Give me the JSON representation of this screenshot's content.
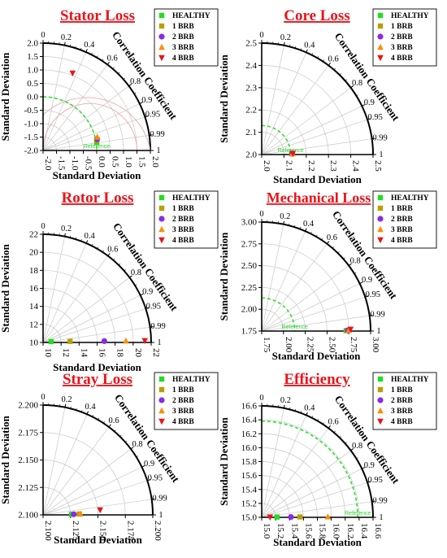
{
  "colors": {
    "title": "#e8141b",
    "healthy": "#22dd22",
    "brb1": "#b8a000",
    "brb2": "#8a2be2",
    "brb3": "#ff8c00",
    "brb4": "#e8141b",
    "reference_arc": "#22dd22",
    "rms_arc": "#e8a0a0",
    "grid": "#c8c8c8"
  },
  "legend_labels": [
    "HEALTHY",
    "1 BRB",
    "2 BRB",
    "3 BRB",
    "4 BRB"
  ],
  "chart_data": [
    {
      "type": "taylor",
      "title": "Stator Loss",
      "xlabel": "Standard Deviation",
      "ylabel": "Standard Deviation",
      "corr_label": "Correlation Coefficient",
      "range": [
        -2.0,
        2.0
      ],
      "x_ticks": [
        "-2.0",
        "-1.5",
        "-1.0",
        "-0.5",
        "0.0",
        "0.5",
        "1.0",
        "1.5",
        "2.0"
      ],
      "y_ticks": [
        "-2.0",
        "-1.5",
        "-1.0",
        "-0.5",
        "0.0",
        "0.5",
        "1.0",
        "1.5",
        "2.0"
      ],
      "corr_ticks": [
        "0",
        "0.2",
        "0.4",
        "0.6",
        "0.8",
        "0.9",
        "0.95",
        "0.99",
        "1"
      ],
      "reference_label": "Reference",
      "reference_value": 0.0,
      "points": [
        {
          "series": "HEALTHY",
          "x": 0.0,
          "y": -1.7
        },
        {
          "series": "1 BRB",
          "x": 0.0,
          "y": -1.62
        },
        {
          "series": "2 BRB",
          "x": 0.02,
          "y": -1.58
        },
        {
          "series": "3 BRB",
          "x": 0.02,
          "y": -1.5
        },
        {
          "series": "4 BRB",
          "x": -0.9,
          "y": 0.88
        }
      ],
      "legend_position": "top-right"
    },
    {
      "type": "taylor",
      "title": "Core Loss",
      "xlabel": "Standard Deviation",
      "ylabel": "Standard Deviation",
      "corr_label": "Correlation Coefficient",
      "range": [
        2.0,
        2.5
      ],
      "x_ticks": [
        "2.0",
        "2.1",
        "2.2",
        "2.3",
        "2.4",
        "2.5"
      ],
      "y_ticks": [
        "2.0",
        "2.1",
        "2.2",
        "2.3",
        "2.4",
        "2.5"
      ],
      "corr_ticks": [
        "0",
        "0.2",
        "0.4",
        "0.6",
        "0.8",
        "0.9",
        "0.95",
        "0.99",
        "1"
      ],
      "reference_label": "Reference",
      "reference_value": 2.13,
      "points": [
        {
          "series": "HEALTHY",
          "x": 2.135,
          "y": 2.003
        },
        {
          "series": "1 BRB",
          "x": 2.135,
          "y": 2.003
        },
        {
          "series": "2 BRB",
          "x": 2.137,
          "y": 2.004
        },
        {
          "series": "3 BRB",
          "x": 2.138,
          "y": 2.004
        },
        {
          "series": "4 BRB",
          "x": 2.14,
          "y": 2.005
        }
      ],
      "legend_position": "top-right"
    },
    {
      "type": "taylor",
      "title": "Rotor Loss",
      "xlabel": "Standard Deviation",
      "ylabel": "Standard Deviation",
      "corr_label": "Correlation Coefficient",
      "range": [
        10,
        22
      ],
      "x_ticks": [
        "10",
        "12",
        "14",
        "16",
        "18",
        "20",
        "22"
      ],
      "y_ticks": [
        "10",
        "12",
        "14",
        "16",
        "18",
        "20",
        "22"
      ],
      "corr_ticks": [
        "0",
        "0.2",
        "0.4",
        "0.6",
        "0.8",
        "0.9",
        "0.95",
        "0.99",
        "1"
      ],
      "reference_label": "",
      "reference_value": 10.0,
      "points": [
        {
          "series": "HEALTHY",
          "x": 10.9,
          "y": 10.1
        },
        {
          "series": "1 BRB",
          "x": 13.0,
          "y": 10.12
        },
        {
          "series": "2 BRB",
          "x": 16.8,
          "y": 10.15
        },
        {
          "series": "3 BRB",
          "x": 19.2,
          "y": 10.17
        },
        {
          "series": "4 BRB",
          "x": 21.3,
          "y": 10.2
        }
      ],
      "legend_position": "top-right"
    },
    {
      "type": "taylor",
      "title": "Mechanical Loss",
      "xlabel": "Standard Deviation",
      "ylabel": "Standard Deviation",
      "corr_label": "Correlation Coefficient",
      "range": [
        1.75,
        3.0
      ],
      "x_ticks": [
        "1.75",
        "2.00",
        "2.25",
        "2.50",
        "2.75",
        "3.00"
      ],
      "y_ticks": [
        "1.75",
        "2.00",
        "2.25",
        "2.50",
        "2.75",
        "3.00"
      ],
      "corr_ticks": [
        "0",
        "0.2",
        "0.4",
        "0.6",
        "0.8",
        "0.9",
        "0.95",
        "0.99",
        "1"
      ],
      "reference_label": "Reference",
      "reference_value": 2.13,
      "points": [
        {
          "series": "HEALTHY",
          "x": 2.72,
          "y": 1.755
        },
        {
          "series": "1 BRB",
          "x": 2.73,
          "y": 1.757
        },
        {
          "series": "2 BRB",
          "x": 2.74,
          "y": 1.758
        },
        {
          "series": "3 BRB",
          "x": 2.75,
          "y": 1.76
        },
        {
          "series": "4 BRB",
          "x": 2.77,
          "y": 1.77
        }
      ],
      "legend_position": "top-right"
    },
    {
      "type": "taylor",
      "title": "Stray Loss",
      "xlabel": "Standard Deviation",
      "ylabel": "Standard Deviation",
      "corr_label": "Correlation Coefficient",
      "range": [
        2.1,
        2.2
      ],
      "x_ticks": [
        "2.100",
        "2.125",
        "2.150",
        "2.175",
        "2.200"
      ],
      "y_ticks": [
        "2.100",
        "2.125",
        "2.150",
        "2.175",
        "2.200"
      ],
      "corr_ticks": [
        "0",
        "0.2",
        "0.4",
        "0.6",
        "0.8",
        "0.9",
        "0.95",
        "0.99",
        "1"
      ],
      "reference_label": "",
      "reference_value": 2.1,
      "points": [
        {
          "series": "HEALTHY",
          "x": 2.126,
          "y": 2.1005
        },
        {
          "series": "1 BRB",
          "x": 2.133,
          "y": 2.1008
        },
        {
          "series": "2 BRB",
          "x": 2.128,
          "y": 2.1006
        },
        {
          "series": "3 BRB",
          "x": 2.134,
          "y": 2.1009
        },
        {
          "series": "4 BRB",
          "x": 2.152,
          "y": 2.1045
        }
      ],
      "legend_position": "top-right"
    },
    {
      "type": "taylor",
      "title": "Efficiency",
      "xlabel": "Standard Deviation",
      "ylabel": "Standard Deviation",
      "corr_label": "Correlation Coefficient",
      "range": [
        15.0,
        16.6
      ],
      "x_ticks": [
        "15.0",
        "15.2",
        "15.4",
        "15.6",
        "15.8",
        "16.0",
        "16.2",
        "16.4",
        "16.6"
      ],
      "y_ticks": [
        "15.0",
        "15.2",
        "15.4",
        "15.6",
        "15.8",
        "16.0",
        "16.2",
        "16.4",
        "16.6"
      ],
      "corr_ticks": [
        "0",
        "0.2",
        "0.4",
        "0.6",
        "0.8",
        "0.9",
        "0.95",
        "0.99",
        "1"
      ],
      "reference_label": "Reference",
      "reference_value": 16.38,
      "points": [
        {
          "series": "HEALTHY",
          "x": 15.22,
          "y": 15.004
        },
        {
          "series": "1 BRB",
          "x": 15.55,
          "y": 15.006
        },
        {
          "series": "2 BRB",
          "x": 15.42,
          "y": 15.005
        },
        {
          "series": "3 BRB",
          "x": 15.95,
          "y": 15.008
        },
        {
          "series": "4 BRB",
          "x": 15.12,
          "y": 15.003
        }
      ],
      "legend_position": "top-right"
    }
  ]
}
